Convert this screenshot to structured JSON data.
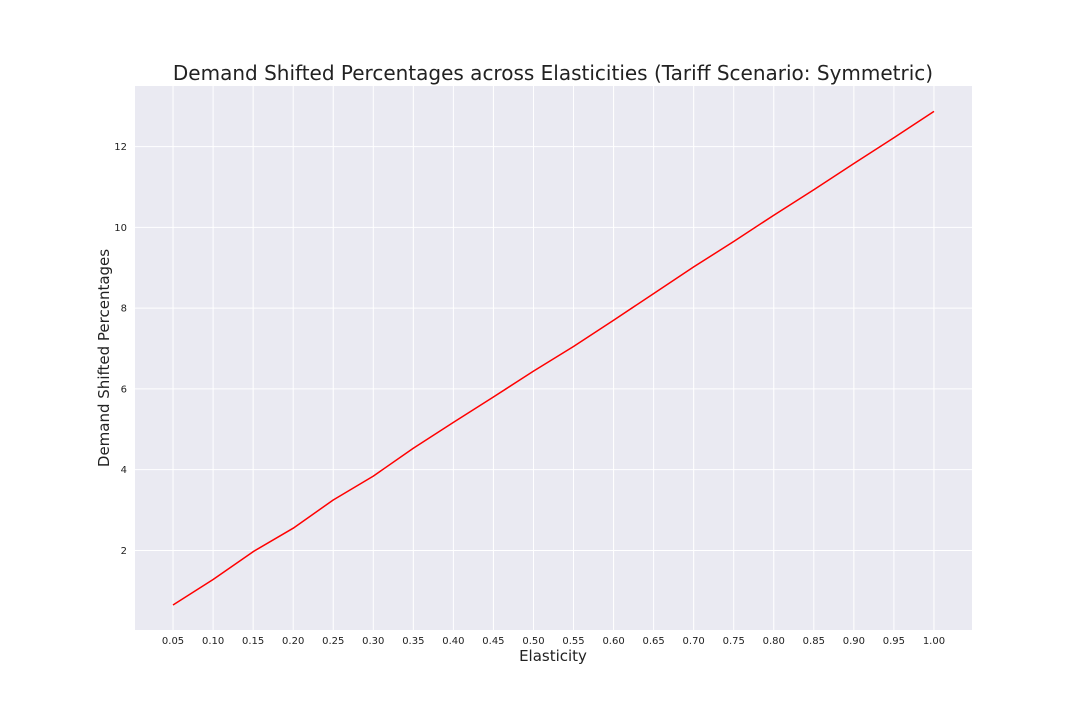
{
  "chart_data": {
    "type": "line",
    "title": "Demand Shifted Percentages across Elasticities (Tariff Scenario: Symmetric)",
    "xlabel": "Elasticity",
    "ylabel": "Demand Shifted Percentages",
    "x_tick_labels": [
      "0.05",
      "0.10",
      "0.15",
      "0.20",
      "0.25",
      "0.30",
      "0.35",
      "0.40",
      "0.45",
      "0.50",
      "0.55",
      "0.60",
      "0.65",
      "0.70",
      "0.75",
      "0.80",
      "0.85",
      "0.90",
      "0.95",
      "1.00"
    ],
    "y_tick_labels": [
      "2",
      "4",
      "6",
      "8",
      "10",
      "12"
    ],
    "y_ticks": [
      2,
      4,
      6,
      8,
      10,
      12
    ],
    "xlim": [
      0.0025,
      1.0475
    ],
    "ylim": [
      0.03,
      13.5
    ],
    "grid": true,
    "series": [
      {
        "x": [
          0.05,
          0.1,
          0.15,
          0.2,
          0.25,
          0.3,
          0.35,
          0.4,
          0.45,
          0.5,
          0.55,
          0.6,
          0.65,
          0.7,
          0.75,
          0.8,
          0.85,
          0.9,
          0.95,
          1.0
        ],
        "values": [
          0.65,
          1.28,
          1.97,
          2.55,
          3.25,
          3.84,
          4.53,
          5.17,
          5.8,
          6.44,
          7.05,
          7.7,
          8.36,
          9.02,
          9.65,
          10.3,
          10.93,
          11.58,
          12.22,
          12.87
        ],
        "color": "#ff0000"
      }
    ],
    "colors": {
      "plot_background": "#eaeaf2",
      "grid": "#ffffff",
      "line": "#ff0000"
    }
  }
}
